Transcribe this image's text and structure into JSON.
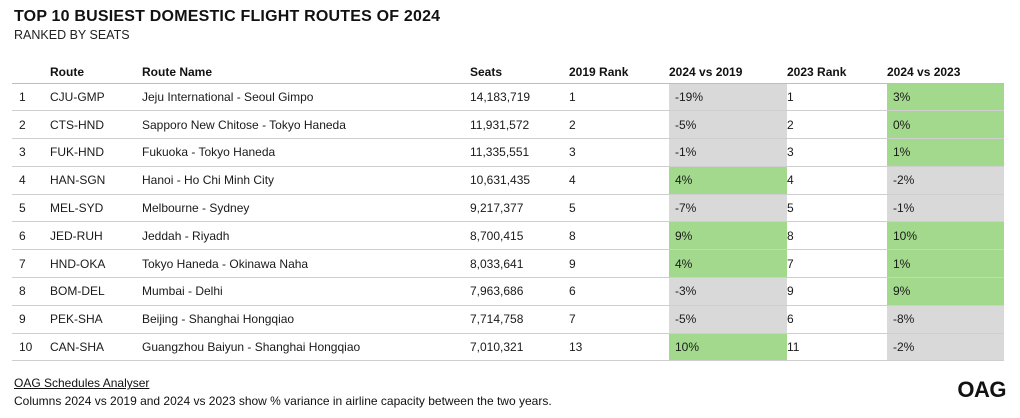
{
  "title": "TOP 10 BUSIEST DOMESTIC FLIGHT ROUTES OF 2024",
  "subtitle": "RANKED BY SEATS",
  "source": "OAG Schedules Analyser",
  "note": "Columns 2024 vs 2019 and 2024 vs 2023 show % variance in airline capacity between the two years.",
  "logo": "OAG",
  "colors": {
    "positive": "#a3d98c",
    "negative": "#d9d9d9"
  },
  "chart_data": {
    "type": "table",
    "title": "TOP 10 BUSIEST DOMESTIC FLIGHT ROUTES OF 2024",
    "subtitle": "RANKED BY SEATS",
    "columns": [
      "",
      "Route",
      "Route Name",
      "Seats",
      "2019 Rank",
      "2024 vs 2019",
      "2023 Rank",
      "2024 vs 2023"
    ],
    "rows": [
      [
        "1",
        "CJU-GMP",
        "Jeju International - Seoul Gimpo",
        "14,183,719",
        "1",
        "-19%",
        "1",
        "3%"
      ],
      [
        "2",
        "CTS-HND",
        "Sapporo New Chitose - Tokyo Haneda",
        "11,931,572",
        "2",
        "-5%",
        "2",
        "0%"
      ],
      [
        "3",
        "FUK-HND",
        "Fukuoka - Tokyo Haneda",
        "11,335,551",
        "3",
        "-1%",
        "3",
        "1%"
      ],
      [
        "4",
        "HAN-SGN",
        "Hanoi - Ho Chi Minh City",
        "10,631,435",
        "4",
        "4%",
        "4",
        "-2%"
      ],
      [
        "5",
        "MEL-SYD",
        "Melbourne - Sydney",
        "9,217,377",
        "5",
        "-7%",
        "5",
        "-1%"
      ],
      [
        "6",
        "JED-RUH",
        "Jeddah - Riyadh",
        "8,700,415",
        "8",
        "9%",
        "8",
        "10%"
      ],
      [
        "7",
        "HND-OKA",
        "Tokyo Haneda - Okinawa Naha",
        "8,033,641",
        "9",
        "4%",
        "7",
        "1%"
      ],
      [
        "8",
        "BOM-DEL",
        "Mumbai - Delhi",
        "7,963,686",
        "6",
        "-3%",
        "9",
        "9%"
      ],
      [
        "9",
        "PEK-SHA",
        "Beijing - Shanghai Hongqiao",
        "7,714,758",
        "7",
        "-5%",
        "6",
        "-8%"
      ],
      [
        "10",
        "CAN-SHA",
        "Guangzhou Baiyun - Shanghai Hongqiao",
        "7,010,321",
        "13",
        "10%",
        "11",
        "-2%"
      ]
    ],
    "cell_highlight": {
      "2024 vs 2019": [
        "negative",
        "negative",
        "negative",
        "positive",
        "negative",
        "positive",
        "positive",
        "negative",
        "negative",
        "positive"
      ],
      "2024 vs 2023": [
        "positive",
        "positive",
        "positive",
        "negative",
        "negative",
        "positive",
        "positive",
        "positive",
        "negative",
        "negative"
      ]
    }
  }
}
